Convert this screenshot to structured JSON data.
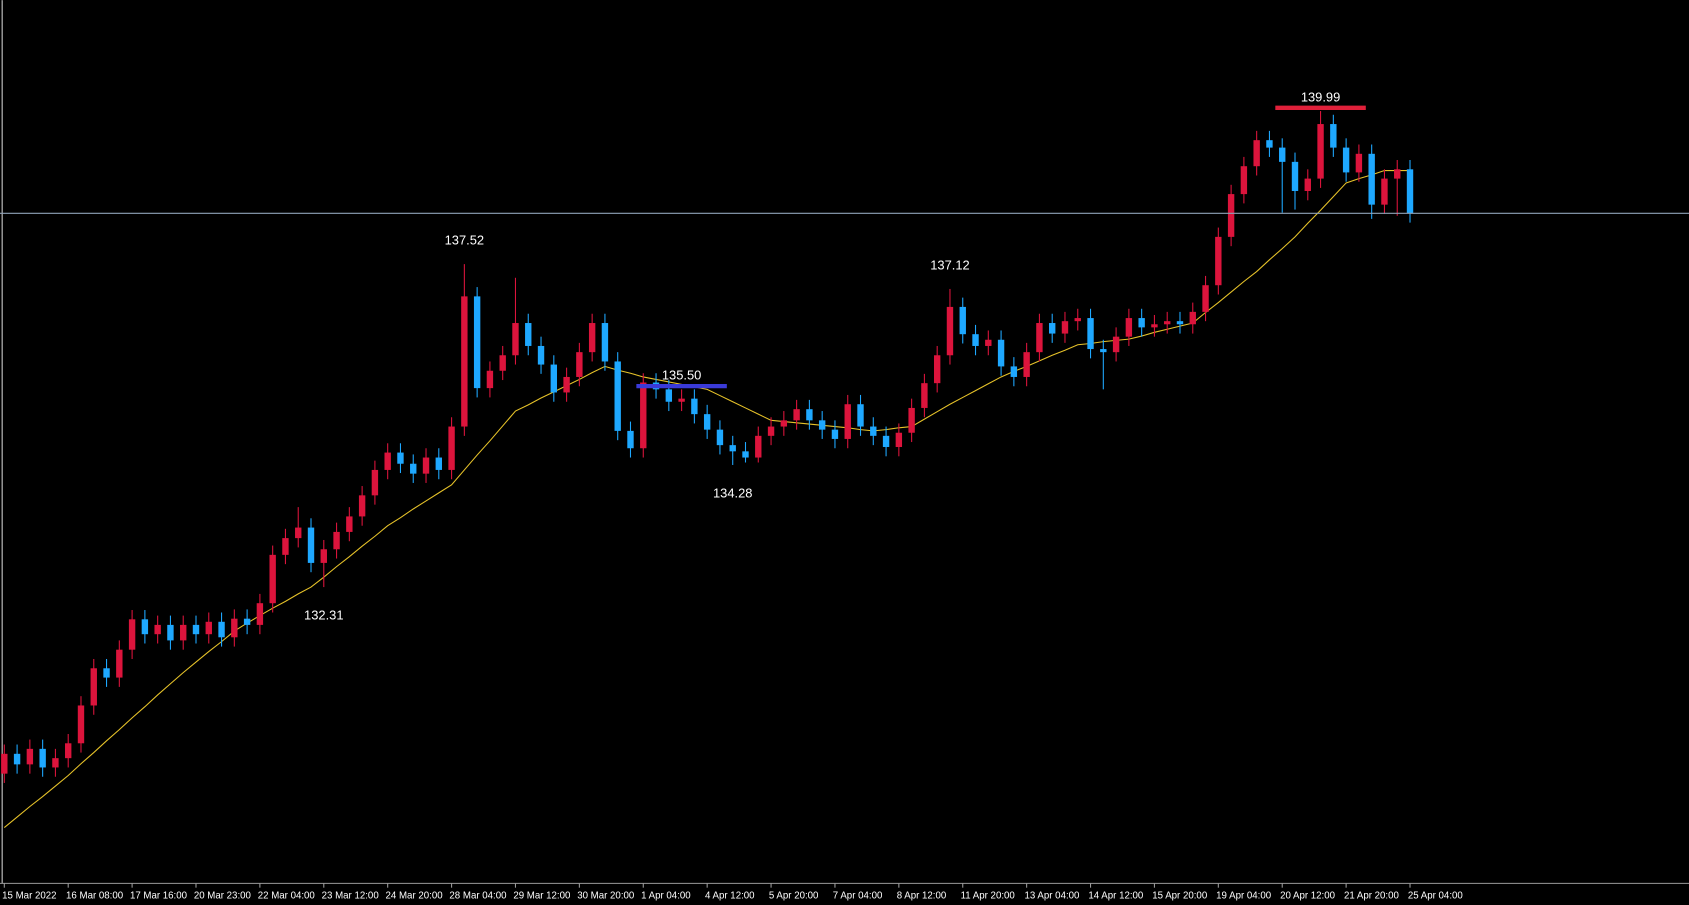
{
  "chart_data": {
    "type": "candlestick",
    "up_color": "#dc143c",
    "down_color": "#1ea8ff",
    "ylim": [
      127.53,
      141.78
    ],
    "categories": [
      "15 Mar 2022",
      null,
      null,
      null,
      null,
      "16 Mar 08:00",
      null,
      null,
      null,
      null,
      "17 Mar 16:00",
      null,
      null,
      null,
      null,
      "20 Mar 23:00",
      null,
      null,
      null,
      null,
      "22 Mar 04:00",
      null,
      null,
      null,
      null,
      "23 Mar 12:00",
      null,
      null,
      null,
      null,
      "24 Mar 20:00",
      null,
      null,
      null,
      null,
      "28 Mar 04:00",
      null,
      null,
      null,
      null,
      "29 Mar 12:00",
      null,
      null,
      null,
      null,
      "30 Mar 20:00",
      null,
      null,
      null,
      null,
      "1 Apr 04:00",
      null,
      null,
      null,
      null,
      "4 Apr 12:00",
      null,
      null,
      null,
      null,
      "5 Apr 20:00",
      null,
      null,
      null,
      null,
      "7 Apr 04:00",
      null,
      null,
      null,
      null,
      "8 Apr 12:00",
      null,
      null,
      null,
      null,
      "11 Apr 20:00",
      null,
      null,
      null,
      null,
      "13 Apr 04:00",
      null,
      null,
      null,
      null,
      "14 Apr 12:00",
      null,
      null,
      null,
      null,
      "15 Apr 20:00",
      null,
      null,
      null,
      null,
      "19 Apr 04:00",
      null,
      null,
      null,
      null,
      "20 Apr 12:00",
      null,
      null,
      null,
      null,
      "21 Apr 20:00",
      null,
      null,
      null,
      null,
      "25 Apr 04:00"
    ],
    "open": [
      129.3,
      129.62,
      129.45,
      129.7,
      129.4,
      129.55,
      129.79,
      130.4,
      131.0,
      130.85,
      131.3,
      131.79,
      131.55,
      131.7,
      131.45,
      131.7,
      131.55,
      131.75,
      131.5,
      131.8,
      131.7,
      132.05,
      132.83,
      133.1,
      133.27,
      132.7,
      132.92,
      133.2,
      133.45,
      133.79,
      134.2,
      134.48,
      134.3,
      134.14,
      134.4,
      134.2,
      134.9,
      137.0,
      135.52,
      135.8,
      136.05,
      136.57,
      136.2,
      135.9,
      135.45,
      135.7,
      136.1,
      136.57,
      135.95,
      134.83,
      134.55,
      135.61,
      135.5,
      135.3,
      135.35,
      135.1,
      134.85,
      134.6,
      134.5,
      134.4,
      134.75,
      134.9,
      135.0,
      135.18,
      135.0,
      134.85,
      134.7,
      135.26,
      134.9,
      134.75,
      134.57,
      134.8,
      135.2,
      135.6,
      136.05,
      136.83,
      136.39,
      136.2,
      136.3,
      135.87,
      135.7,
      136.1,
      136.57,
      136.4,
      136.6,
      136.65,
      136.15,
      136.1,
      136.35,
      136.65,
      136.5,
      136.55,
      136.6,
      136.55,
      136.75,
      137.18,
      137.96,
      138.65,
      139.1,
      139.52,
      139.4,
      139.17,
      138.7,
      138.9,
      139.78,
      139.4,
      139.0,
      139.3,
      138.48,
      138.9,
      139.05
    ],
    "high": [
      129.77,
      129.77,
      129.85,
      129.85,
      129.7,
      129.94,
      130.55,
      131.15,
      131.15,
      131.45,
      131.94,
      131.94,
      131.85,
      131.85,
      131.85,
      131.85,
      131.9,
      131.9,
      131.95,
      131.95,
      132.2,
      132.98,
      133.25,
      133.6,
      133.42,
      133.07,
      133.35,
      133.6,
      133.94,
      134.35,
      134.63,
      134.63,
      134.45,
      134.55,
      134.55,
      135.05,
      137.52,
      137.15,
      135.95,
      136.2,
      137.3,
      136.72,
      136.35,
      136.05,
      135.85,
      136.25,
      136.72,
      136.72,
      136.1,
      134.98,
      135.76,
      135.76,
      135.65,
      135.5,
      135.5,
      135.25,
      135.0,
      134.75,
      134.65,
      134.9,
      135.05,
      135.15,
      135.33,
      135.33,
      135.15,
      135.0,
      135.41,
      135.41,
      135.05,
      134.9,
      134.95,
      135.35,
      135.75,
      136.2,
      137.12,
      136.98,
      136.54,
      136.45,
      136.45,
      136.02,
      136.25,
      136.72,
      136.72,
      136.75,
      136.8,
      136.8,
      136.3,
      136.5,
      136.8,
      136.8,
      136.7,
      136.75,
      136.75,
      136.9,
      137.33,
      138.11,
      138.8,
      139.25,
      139.67,
      139.67,
      139.55,
      139.32,
      139.05,
      139.99,
      139.93,
      139.55,
      139.45,
      139.45,
      139.05,
      139.2,
      139.2
    ],
    "low": [
      129.15,
      129.3,
      129.3,
      129.25,
      129.25,
      129.4,
      129.64,
      130.25,
      130.7,
      130.7,
      131.15,
      131.4,
      131.4,
      131.3,
      131.3,
      131.4,
      131.4,
      131.35,
      131.35,
      131.55,
      131.55,
      131.9,
      132.68,
      132.95,
      132.55,
      132.31,
      132.77,
      133.05,
      133.3,
      133.64,
      134.05,
      134.15,
      133.99,
      133.99,
      134.05,
      134.05,
      134.75,
      135.37,
      135.37,
      135.65,
      135.9,
      136.05,
      135.75,
      135.3,
      135.3,
      135.55,
      135.95,
      135.8,
      134.68,
      134.4,
      134.4,
      135.35,
      135.15,
      135.15,
      134.95,
      134.7,
      134.45,
      134.28,
      134.32,
      134.32,
      134.6,
      134.75,
      134.85,
      134.85,
      134.7,
      134.55,
      134.55,
      134.75,
      134.6,
      134.42,
      134.42,
      134.65,
      135.05,
      135.45,
      135.9,
      136.24,
      136.05,
      136.05,
      135.72,
      135.55,
      135.55,
      135.95,
      136.25,
      136.25,
      136.45,
      136.0,
      135.5,
      135.95,
      136.2,
      136.35,
      136.35,
      136.4,
      136.4,
      136.4,
      136.6,
      137.03,
      137.81,
      138.5,
      138.95,
      139.25,
      138.35,
      138.4,
      138.55,
      138.75,
      139.25,
      138.85,
      138.85,
      138.25,
      138.33,
      138.3,
      138.19
    ],
    "close": [
      129.62,
      129.45,
      129.7,
      129.4,
      129.55,
      129.79,
      130.4,
      131.0,
      130.85,
      131.3,
      131.79,
      131.55,
      131.7,
      131.45,
      131.7,
      131.55,
      131.75,
      131.5,
      131.8,
      131.7,
      132.05,
      132.83,
      133.1,
      133.27,
      132.7,
      132.92,
      133.2,
      133.45,
      133.79,
      134.2,
      134.48,
      134.3,
      134.14,
      134.4,
      134.2,
      134.9,
      137.0,
      135.52,
      135.8,
      136.05,
      136.57,
      136.2,
      135.9,
      135.45,
      135.7,
      136.1,
      136.57,
      135.95,
      134.83,
      134.55,
      135.61,
      135.5,
      135.3,
      135.35,
      135.1,
      134.85,
      134.6,
      134.5,
      134.4,
      134.75,
      134.9,
      135.0,
      135.18,
      135.0,
      134.85,
      134.7,
      135.26,
      134.9,
      134.75,
      134.57,
      134.8,
      135.2,
      135.6,
      136.05,
      136.83,
      136.39,
      136.2,
      136.3,
      135.87,
      135.7,
      136.1,
      136.57,
      136.4,
      136.6,
      136.65,
      136.15,
      136.1,
      136.35,
      136.65,
      136.5,
      136.55,
      136.6,
      136.55,
      136.75,
      137.18,
      137.96,
      138.65,
      139.1,
      139.52,
      139.4,
      139.17,
      138.7,
      138.9,
      139.78,
      139.4,
      139.0,
      139.3,
      138.48,
      138.9,
      139.05,
      138.34
    ],
    "ma": {
      "color": "#e6c229",
      "values": [
        128.43,
        128.6,
        128.77,
        128.93,
        129.1,
        129.27,
        129.46,
        129.64,
        129.83,
        130.01,
        130.2,
        130.38,
        130.57,
        130.75,
        130.93,
        131.1,
        131.27,
        131.43,
        131.6,
        131.73,
        131.85,
        131.97,
        132.08,
        132.2,
        132.31,
        132.47,
        132.64,
        132.8,
        132.97,
        133.13,
        133.3,
        133.43,
        133.57,
        133.7,
        133.83,
        133.96,
        134.2,
        134.44,
        134.67,
        134.91,
        135.15,
        135.25,
        135.36,
        135.46,
        135.56,
        135.66,
        135.77,
        135.87,
        135.81,
        135.76,
        135.7,
        135.66,
        135.62,
        135.58,
        135.54,
        135.5,
        135.4,
        135.3,
        135.2,
        135.1,
        135.0,
        134.98,
        134.96,
        134.94,
        134.92,
        134.9,
        134.88,
        134.85,
        134.83,
        134.85,
        134.88,
        134.9,
        135.02,
        135.14,
        135.26,
        135.37,
        135.48,
        135.59,
        135.7,
        135.79,
        135.87,
        135.96,
        136.05,
        136.13,
        136.22,
        136.24,
        136.27,
        136.29,
        136.31,
        136.36,
        136.42,
        136.47,
        136.52,
        136.57,
        136.74,
        136.9,
        137.07,
        137.24,
        137.4,
        137.59,
        137.77,
        137.96,
        138.18,
        138.39,
        138.61,
        138.83,
        138.9,
        138.96,
        139.03,
        139.03,
        139.03
      ]
    },
    "price_line_color": "#8fa3b8",
    "annotations": [
      {
        "label": "132.31",
        "value": 132.31
      },
      {
        "label": "137.52",
        "value": 137.52
      },
      {
        "label": "134.28",
        "value": 134.28
      },
      {
        "label": "137.12",
        "value": 137.12
      },
      {
        "label": "135.50",
        "value": 135.5,
        "color": "#3a3ad8"
      },
      {
        "label": "139.99",
        "value": 139.99,
        "color": "#e0203a"
      }
    ]
  }
}
